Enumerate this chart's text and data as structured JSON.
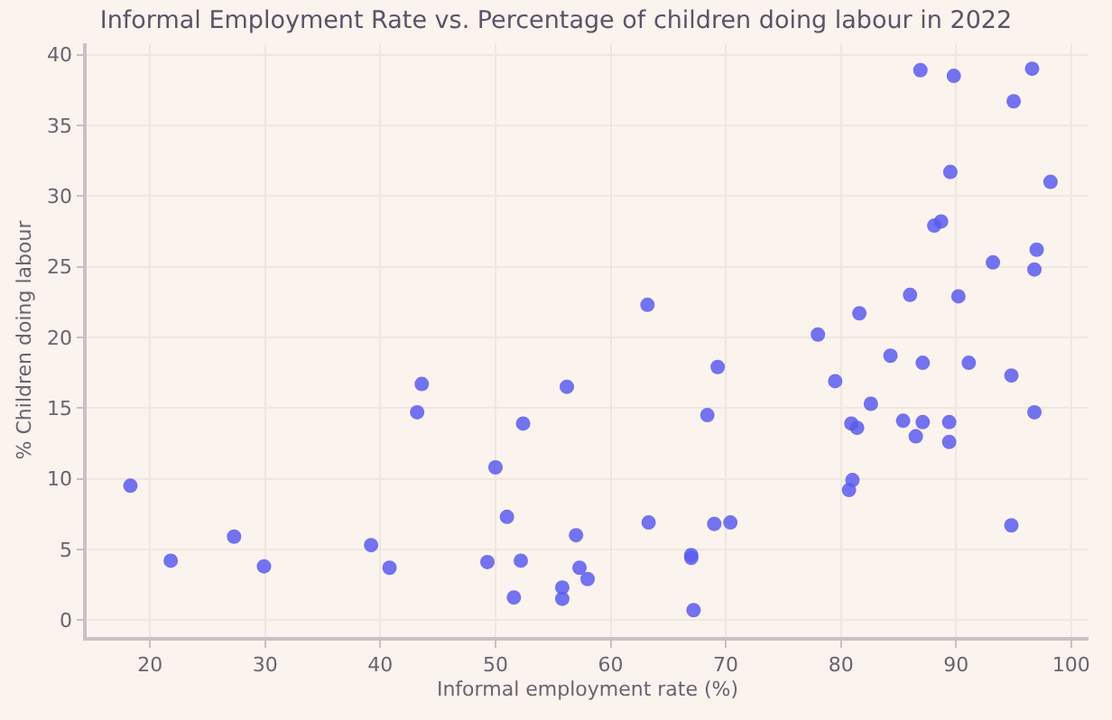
{
  "chart_data": {
    "type": "scatter",
    "title": "Informal Employment Rate vs. Percentage of children doing labour in 2022",
    "xlabel": "Informal employment rate (%)",
    "ylabel": "% Children doing labour",
    "x": [
      18.3,
      21.8,
      27.3,
      29.9,
      39.2,
      40.8,
      43.2,
      43.6,
      49.3,
      50,
      51,
      51.6,
      52.2,
      52.4,
      55.8,
      55.8,
      56.2,
      57,
      57.3,
      58,
      63.2,
      63.3,
      67,
      67,
      67.2,
      68.4,
      69,
      69.3,
      70.4,
      78,
      79.5,
      80.7,
      81,
      80.9,
      81.4,
      81.6,
      82.6,
      84.3,
      85.4,
      86,
      86.5,
      87.1,
      87.1,
      89.4,
      89.4,
      90.2,
      91.1,
      93.2,
      94.8,
      94.8,
      96.8,
      96.8,
      97,
      98.2,
      86.9,
      89.8,
      96.6,
      95,
      89.5,
      88.1,
      88.7
    ],
    "series": [
      {
        "color": "#5a5aee",
        "values": [
          9.5,
          4.2,
          5.9,
          3.8,
          5.3,
          3.7,
          14.7,
          16.7,
          4.1,
          10.8,
          7.3,
          1.6,
          4.2,
          13.9,
          2.3,
          1.5,
          16.5,
          6.0,
          3.7,
          2.9,
          22.3,
          6.9,
          4.6,
          4.4,
          0.7,
          14.5,
          6.8,
          17.9,
          6.9,
          20.2,
          16.9,
          9.2,
          9.9,
          13.9,
          13.6,
          21.7,
          15.3,
          18.7,
          14.1,
          23,
          13,
          18.2,
          14,
          14,
          12.6,
          22.9,
          18.2,
          25.3,
          17.3,
          6.7,
          14.7,
          24.8,
          26.2,
          31,
          38.9,
          38.5,
          39,
          36.7,
          31.7,
          27.9,
          28.2
        ]
      }
    ],
    "xlim": [
      14.5,
      101.5
    ],
    "ylim": [
      -1.2,
      40.8
    ],
    "xticks": [
      20,
      30,
      40,
      50,
      60,
      70,
      80,
      90,
      100
    ],
    "yticks": [
      0,
      5,
      10,
      15,
      20,
      25,
      30,
      35,
      40
    ],
    "grid": true,
    "legend": false,
    "marker": "circle"
  }
}
